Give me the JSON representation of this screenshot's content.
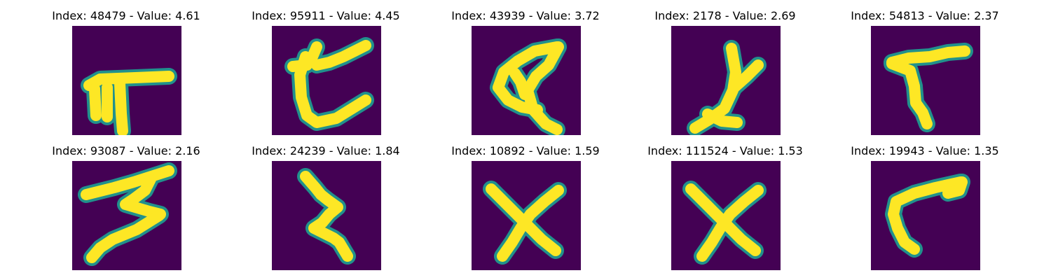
{
  "panels": [
    {
      "index": "48479",
      "value": "4.61",
      "title": "Index: 48479 - Value: 4.61",
      "glyph": "pi-like-glyph"
    },
    {
      "index": "95911",
      "value": "4.45",
      "title": "Index: 95911 - Value: 4.45",
      "glyph": "curly-c-glyph"
    },
    {
      "index": "43939",
      "value": "3.72",
      "title": "Index: 43939 - Value: 3.72",
      "glyph": "a-like-glyph"
    },
    {
      "index": "2178",
      "value": "2.69",
      "title": "Index: 2178 - Value: 2.69",
      "glyph": "y-like-glyph"
    },
    {
      "index": "54813",
      "value": "2.37",
      "title": "Index: 54813 - Value: 2.37",
      "glyph": "t-like-glyph"
    },
    {
      "index": "93087",
      "value": "2.16",
      "title": "Index: 93087 - Value: 2.16",
      "glyph": "three-like-glyph"
    },
    {
      "index": "24239",
      "value": "1.84",
      "title": "Index: 24239 - Value: 1.84",
      "glyph": "zigzag-glyph"
    },
    {
      "index": "10892",
      "value": "1.59",
      "title": "Index: 10892 - Value: 1.59",
      "glyph": "x-glyph"
    },
    {
      "index": "111524",
      "value": "1.53",
      "title": "Index: 111524 - Value: 1.53",
      "glyph": "x-glyph"
    },
    {
      "index": "19943",
      "value": "1.35",
      "title": "Index: 19943 - Value: 1.35",
      "glyph": "l-like-glyph"
    }
  ],
  "colors": {
    "background": "#440154",
    "edge": "#21918c",
    "stroke": "#fde725"
  }
}
